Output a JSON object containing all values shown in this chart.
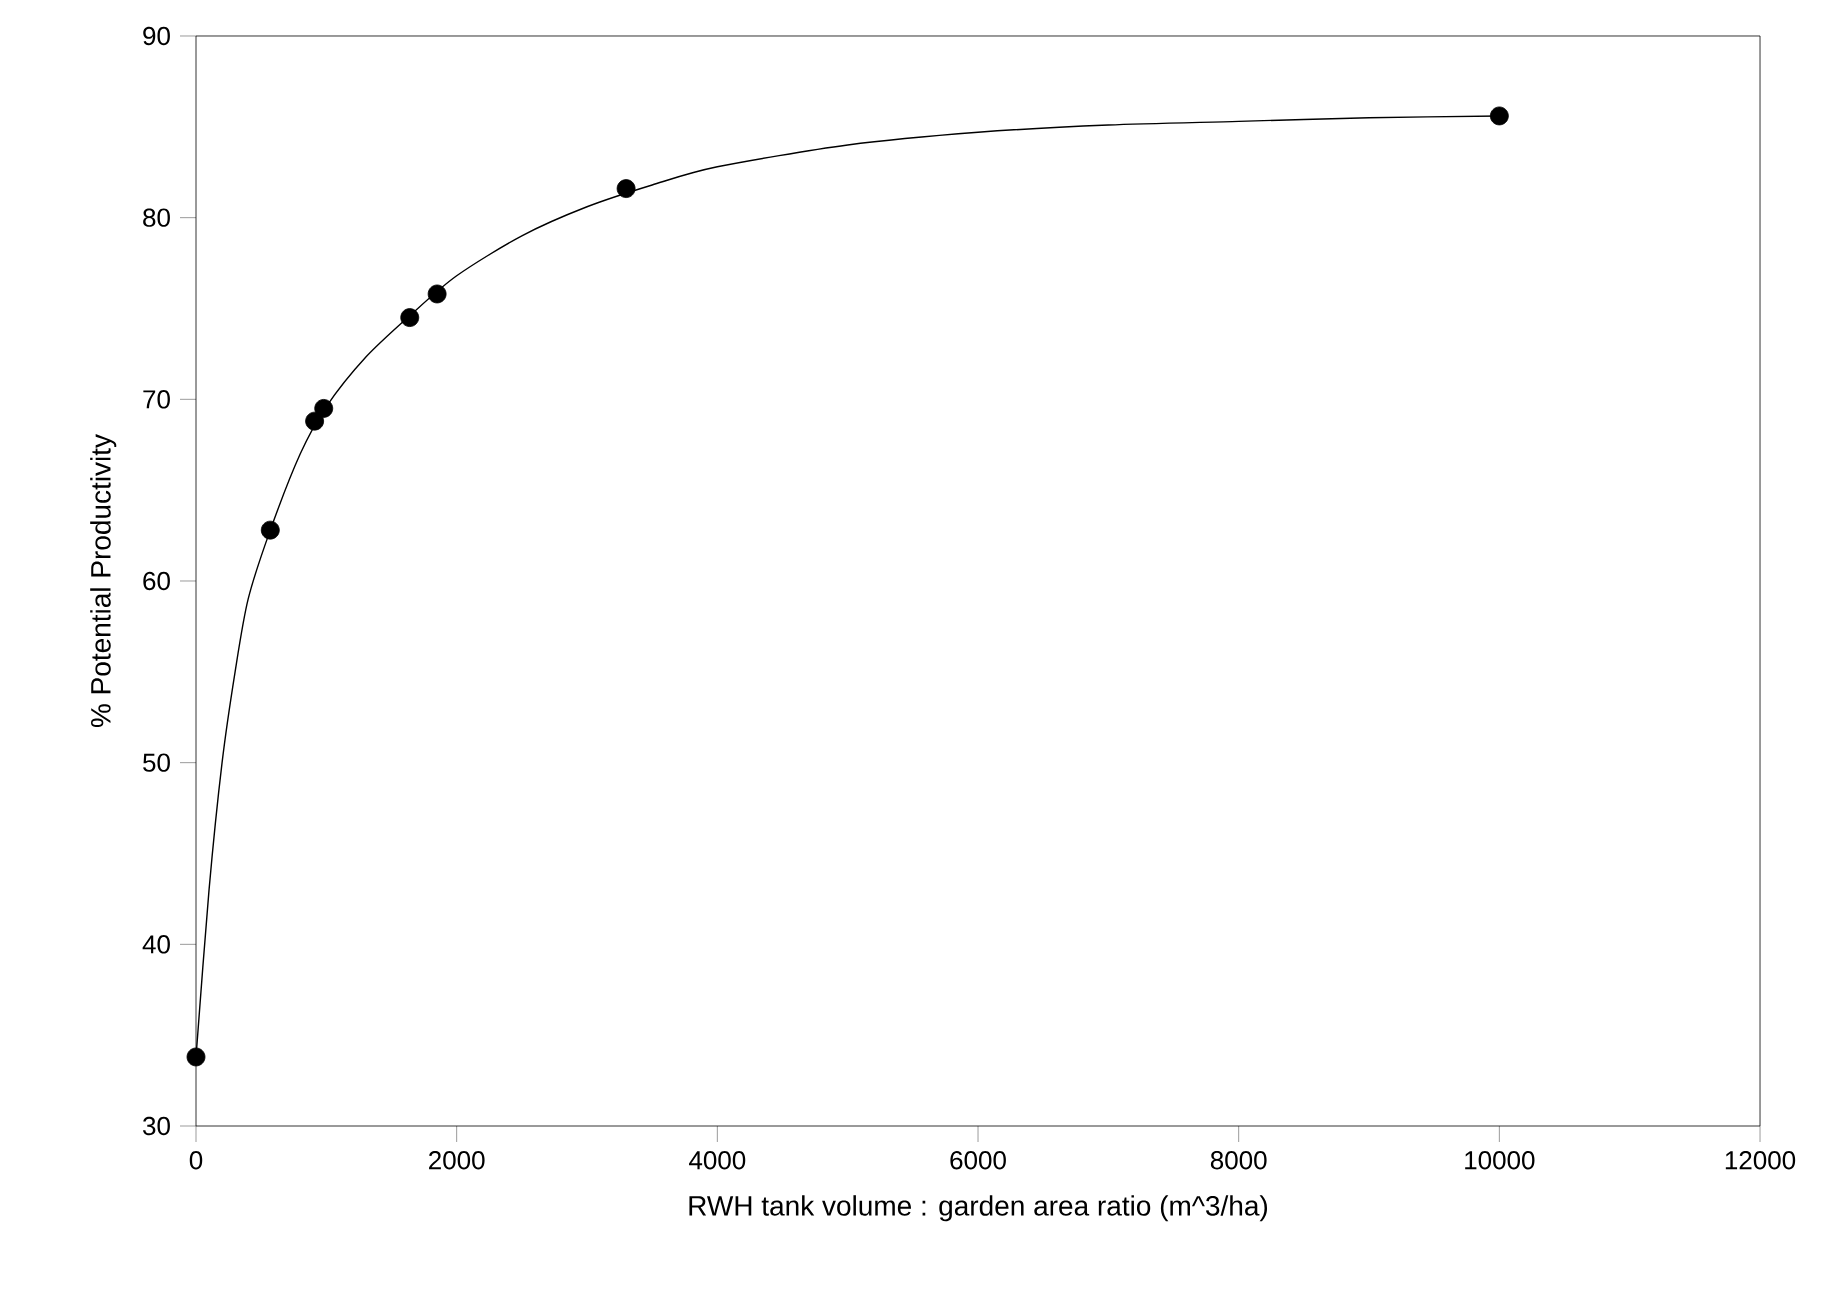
{
  "chart_data": {
    "type": "scatter",
    "xlabel": "RWH tank volume : garden area ratio (m^3/ha)",
    "ylabel": "% Potential Productivity",
    "xlim": [
      0,
      12000
    ],
    "ylim": [
      30,
      90
    ],
    "xticks": [
      0,
      2000,
      4000,
      6000,
      8000,
      10000,
      12000
    ],
    "yticks": [
      30,
      40,
      50,
      60,
      70,
      80,
      90
    ],
    "grid": false,
    "marker": "circle",
    "series": [
      {
        "type": "scatter",
        "color": "#000000",
        "x": [
          0,
          570,
          910,
          980,
          1640,
          1850,
          3300,
          10000
        ],
        "values": [
          33.8,
          62.8,
          68.8,
          69.5,
          74.5,
          75.8,
          81.6,
          85.6
        ]
      },
      {
        "type": "line",
        "color": "#000000",
        "marker": "none",
        "line_style": "solid",
        "x": [
          0,
          100,
          200,
          300,
          400,
          570,
          800,
          1000,
          1300,
          1640,
          2000,
          2500,
          3000,
          3500,
          4000,
          5000,
          6000,
          7000,
          8000,
          9000,
          10000
        ],
        "values": [
          33.8,
          43,
          50,
          55,
          59,
          62.8,
          67,
          69.6,
          72.3,
          74.6,
          76.8,
          79,
          80.6,
          81.8,
          82.8,
          84,
          84.7,
          85.1,
          85.3,
          85.5,
          85.6
        ]
      }
    ]
  }
}
